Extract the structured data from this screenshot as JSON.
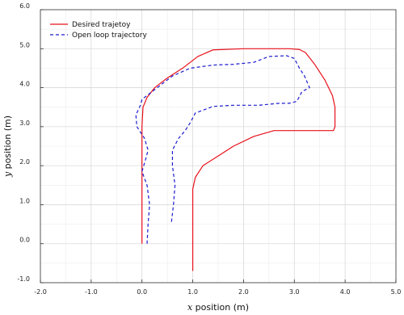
{
  "chart_data": {
    "type": "line",
    "xlabel_var": "x",
    "xlabel_rest": " position (m)",
    "ylabel_var": "y",
    "ylabel_rest": " position (m)",
    "xlim": [
      -2.0,
      5.0
    ],
    "ylim": [
      -1.0,
      6.0
    ],
    "xticks": [
      "-2.0",
      "-1.0",
      "0.0",
      "1.0",
      "2.0",
      "3.0",
      "4.0",
      "5.0"
    ],
    "yticks": [
      "-1.0",
      "0.0",
      "1.0",
      "2.0",
      "3.0",
      "4.0",
      "5.0",
      "6.0"
    ],
    "grid": true,
    "legend_position": "top-left",
    "series": [
      {
        "name": "Desired trajetoy",
        "color": "#e8101a",
        "style": "solid",
        "points": [
          [
            0.0,
            0.0
          ],
          [
            0.0,
            1.0
          ],
          [
            0.0,
            2.0
          ],
          [
            0.0,
            3.0
          ],
          [
            0.02,
            3.5
          ],
          [
            0.1,
            3.75
          ],
          [
            0.25,
            4.0
          ],
          [
            0.5,
            4.25
          ],
          [
            0.8,
            4.5
          ],
          [
            1.1,
            4.8
          ],
          [
            1.4,
            4.97
          ],
          [
            2.0,
            5.0
          ],
          [
            2.6,
            5.0
          ],
          [
            2.9,
            5.0
          ],
          [
            3.1,
            4.98
          ],
          [
            3.22,
            4.9
          ],
          [
            3.4,
            4.6
          ],
          [
            3.6,
            4.2
          ],
          [
            3.75,
            3.8
          ],
          [
            3.8,
            3.5
          ],
          [
            3.8,
            3.0
          ],
          [
            3.77,
            2.9
          ],
          [
            3.5,
            2.9
          ],
          [
            3.0,
            2.9
          ],
          [
            2.6,
            2.9
          ],
          [
            2.2,
            2.75
          ],
          [
            1.8,
            2.5
          ],
          [
            1.5,
            2.25
          ],
          [
            1.2,
            2.0
          ],
          [
            1.05,
            1.7
          ],
          [
            1.0,
            1.4
          ],
          [
            1.0,
            1.0
          ],
          [
            1.0,
            0.0
          ],
          [
            1.0,
            -0.7
          ]
        ]
      },
      {
        "name": "Open loop trajectory",
        "color": "#1a1acf",
        "style": "dashed",
        "points": [
          [
            0.1,
            0.0
          ],
          [
            0.12,
            0.5
          ],
          [
            0.15,
            1.0
          ],
          [
            0.1,
            1.5
          ],
          [
            0.0,
            1.85
          ],
          [
            0.08,
            2.2
          ],
          [
            0.12,
            2.4
          ],
          [
            0.05,
            2.7
          ],
          [
            -0.1,
            3.0
          ],
          [
            -0.12,
            3.3
          ],
          [
            -0.03,
            3.55
          ],
          [
            0.0,
            3.7
          ],
          [
            0.3,
            4.0
          ],
          [
            0.6,
            4.3
          ],
          [
            0.95,
            4.5
          ],
          [
            1.4,
            4.58
          ],
          [
            1.8,
            4.6
          ],
          [
            2.2,
            4.65
          ],
          [
            2.5,
            4.8
          ],
          [
            2.85,
            4.82
          ],
          [
            3.0,
            4.75
          ],
          [
            3.1,
            4.5
          ],
          [
            3.2,
            4.3
          ],
          [
            3.3,
            4.0
          ],
          [
            3.15,
            3.9
          ],
          [
            3.05,
            3.65
          ],
          [
            2.9,
            3.6
          ],
          [
            2.7,
            3.6
          ],
          [
            2.3,
            3.55
          ],
          [
            1.8,
            3.55
          ],
          [
            1.4,
            3.52
          ],
          [
            1.05,
            3.35
          ],
          [
            0.95,
            3.1
          ],
          [
            0.85,
            2.9
          ],
          [
            0.72,
            2.7
          ],
          [
            0.6,
            2.4
          ],
          [
            0.6,
            2.0
          ],
          [
            0.65,
            1.5
          ],
          [
            0.62,
            1.0
          ],
          [
            0.58,
            0.55
          ]
        ]
      }
    ]
  }
}
